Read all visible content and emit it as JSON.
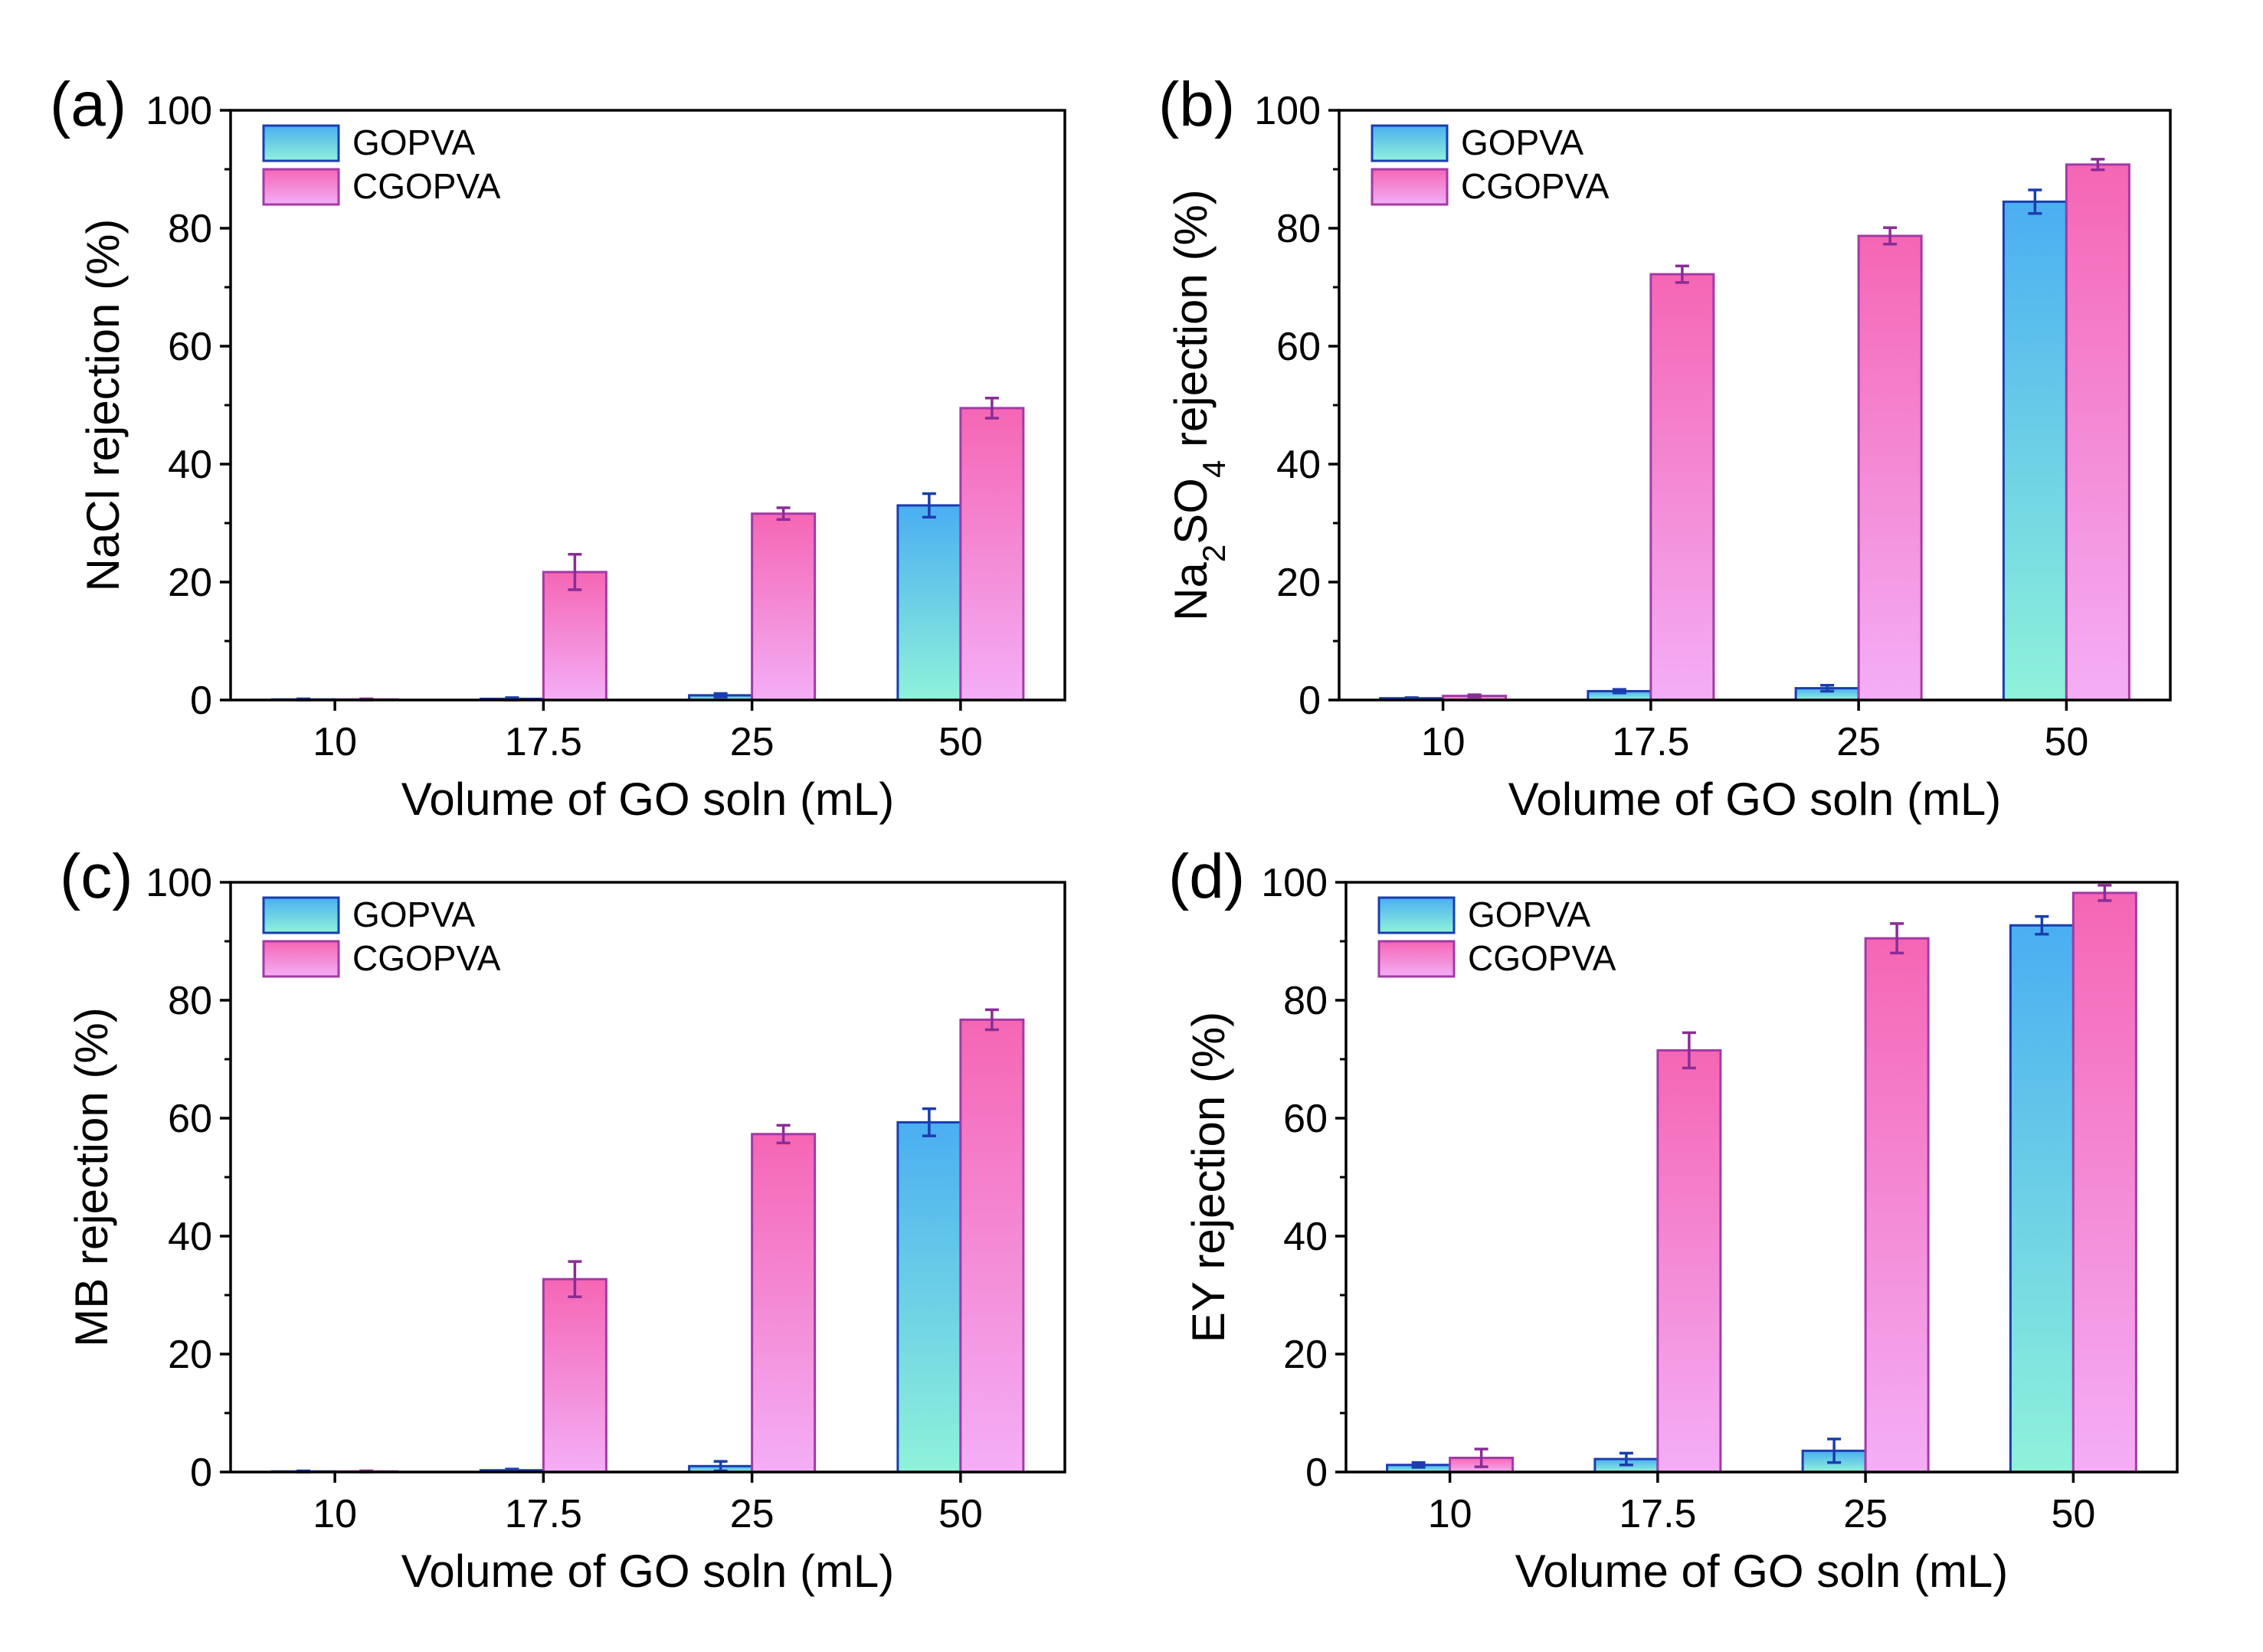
{
  "figure": {
    "series_names": [
      "GOPVA",
      "CGOPVA"
    ],
    "colors": {
      "gopva_top": "#4AAEF2",
      "gopva_bottom": "#8FF2DA",
      "gopva_edge": "#1A3DAE",
      "gopva_err": "#1A3DAE",
      "cgopva_top": "#F566B4",
      "cgopva_bottom": "#F4AEF6",
      "cgopva_edge": "#A23AA6",
      "cgopva_err": "#8A2C96"
    }
  },
  "chart_data": [
    {
      "panel": "(a)",
      "type": "bar",
      "xlabel": "Volume of GO soln (mL)",
      "ylabel_parts": [
        {
          "t": "NaCl rejection (%)"
        }
      ],
      "categories": [
        "10",
        "17.5",
        "25",
        "50"
      ],
      "ylim": [
        0,
        100
      ],
      "yticks": [
        "0",
        "20",
        "40",
        "60",
        "80",
        "100"
      ],
      "legend": "top-left",
      "series": [
        {
          "name": "GOPVA",
          "values": [
            0.1,
            0.2,
            0.8,
            33
          ],
          "errors": [
            0.1,
            0.2,
            0.3,
            2
          ]
        },
        {
          "name": "CGOPVA",
          "values": [
            0.1,
            21.7,
            31.6,
            49.5
          ],
          "errors": [
            0.1,
            3,
            1,
            1.7
          ]
        }
      ]
    },
    {
      "panel": "(b)",
      "type": "bar",
      "xlabel": "Volume of GO soln (mL)",
      "ylabel_parts": [
        {
          "t": "Na"
        },
        {
          "t": "2",
          "sub": true
        },
        {
          "t": "SO"
        },
        {
          "t": "4",
          "sub": true
        },
        {
          "t": " rejection (%)"
        }
      ],
      "categories": [
        "10",
        "17.5",
        "25",
        "50"
      ],
      "ylim": [
        0,
        100
      ],
      "yticks": [
        "0",
        "20",
        "40",
        "60",
        "80",
        "100"
      ],
      "legend": "top-left",
      "series": [
        {
          "name": "GOPVA",
          "values": [
            0.3,
            1.5,
            2,
            84.5
          ],
          "errors": [
            0.1,
            0.3,
            0.5,
            2
          ]
        },
        {
          "name": "CGOPVA",
          "values": [
            0.7,
            72.2,
            78.7,
            90.8
          ],
          "errors": [
            0.2,
            1.4,
            1.4,
            0.9
          ]
        }
      ]
    },
    {
      "panel": "(c)",
      "type": "bar",
      "xlabel": "Volume of GO soln (mL)",
      "ylabel_parts": [
        {
          "t": "MB rejection (%)"
        }
      ],
      "categories": [
        "10",
        "17.5",
        "25",
        "50"
      ],
      "ylim": [
        0,
        100
      ],
      "yticks": [
        "0",
        "20",
        "40",
        "60",
        "80",
        "100"
      ],
      "legend": "top-left",
      "series": [
        {
          "name": "GOPVA",
          "values": [
            0.1,
            0.3,
            1,
            59.3
          ],
          "errors": [
            0.1,
            0.2,
            0.8,
            2.3
          ]
        },
        {
          "name": "CGOPVA",
          "values": [
            0.1,
            32.7,
            57.3,
            76.7
          ],
          "errors": [
            0.1,
            3,
            1.5,
            1.7
          ]
        }
      ]
    },
    {
      "panel": "(d)",
      "type": "bar",
      "xlabel": "Volume of GO soln (mL)",
      "ylabel_parts": [
        {
          "t": "EY rejection (%)"
        }
      ],
      "categories": [
        "10",
        "17.5",
        "25",
        "50"
      ],
      "ylim": [
        0,
        100
      ],
      "yticks": [
        "0",
        "20",
        "40",
        "60",
        "80",
        "100"
      ],
      "legend": "top-left",
      "series": [
        {
          "name": "GOPVA",
          "values": [
            1.2,
            2.2,
            3.6,
            92.7
          ],
          "errors": [
            0.4,
            1,
            2,
            1.5
          ]
        },
        {
          "name": "CGOPVA",
          "values": [
            2.4,
            71.5,
            90.5,
            98.2
          ],
          "errors": [
            1.5,
            3,
            2.5,
            1.3
          ]
        }
      ]
    }
  ]
}
